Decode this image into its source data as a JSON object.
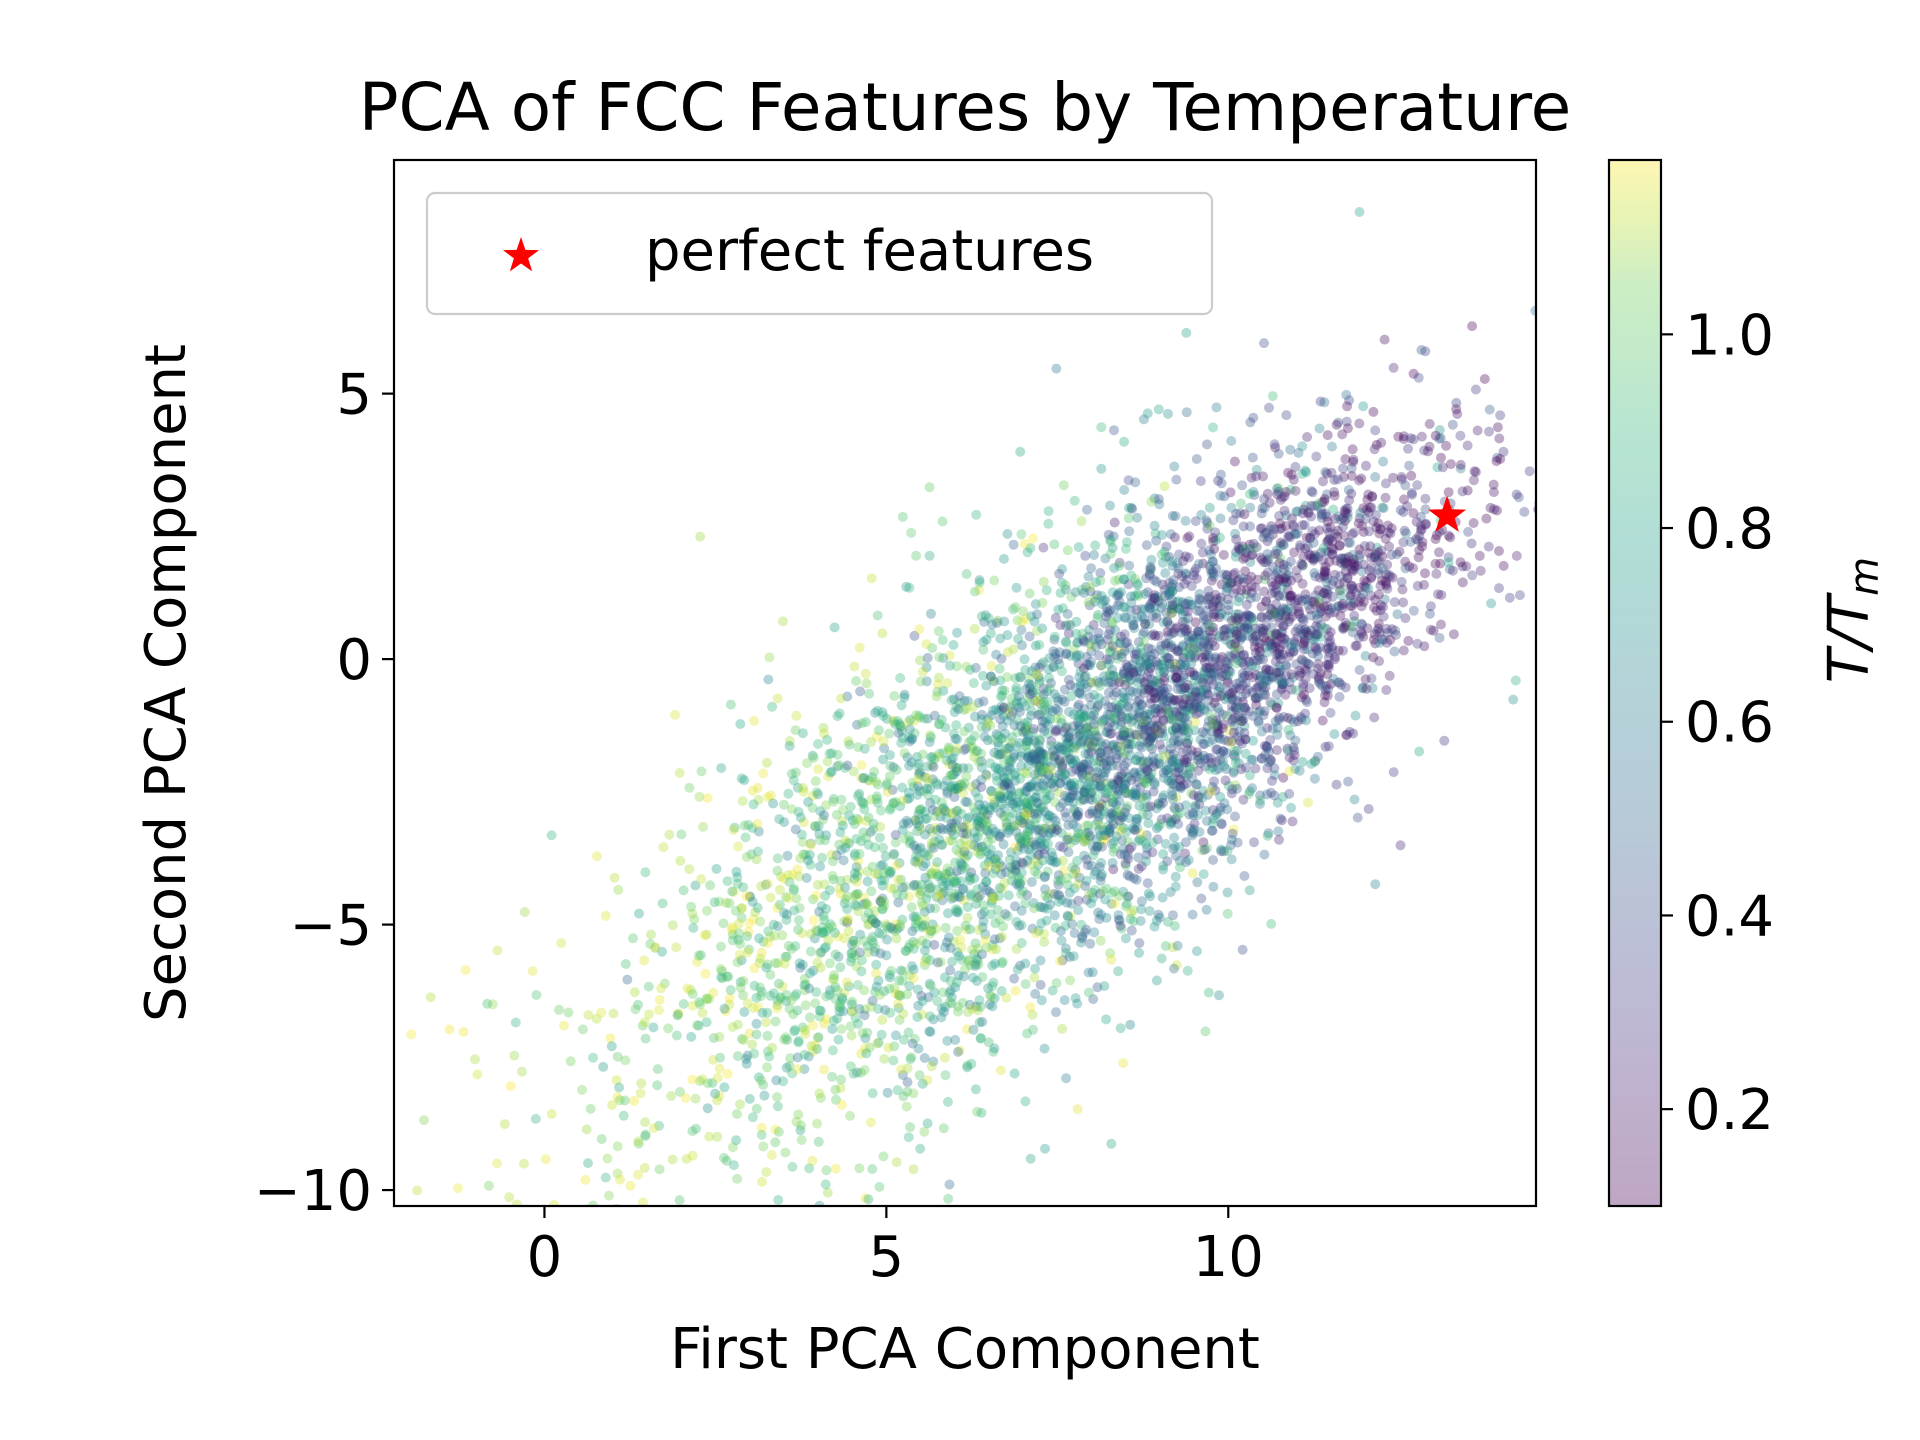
{
  "chart_data": {
    "type": "scatter",
    "title": "PCA of FCC Features by Temperature",
    "xlabel": "First PCA Component",
    "ylabel": "Second PCA Component",
    "xlim": [
      -2.2,
      14.5
    ],
    "ylim": [
      -10.3,
      9.4
    ],
    "xticks": [
      {
        "value": 0,
        "label": "0"
      },
      {
        "value": 5,
        "label": "5"
      },
      {
        "value": 10,
        "label": "10"
      }
    ],
    "yticks": [
      {
        "value": 5,
        "label": "5"
      },
      {
        "value": 0,
        "label": "0"
      },
      {
        "value": -5,
        "label": "−5"
      },
      {
        "value": -10,
        "label": "−10"
      }
    ],
    "colorbar": {
      "label_main": "T/T",
      "label_sub": "m",
      "range": [
        0.1,
        1.18
      ],
      "colormap": "viridis",
      "alpha": 0.35,
      "ticks": [
        {
          "value": 0.2,
          "label": "0.2"
        },
        {
          "value": 0.4,
          "label": "0.4"
        },
        {
          "value": 0.6,
          "label": "0.6"
        },
        {
          "value": 0.8,
          "label": "0.8"
        },
        {
          "value": 1.0,
          "label": "1.0"
        }
      ]
    },
    "legend": {
      "placement": "top-left",
      "entries": [
        {
          "label": "perfect features",
          "marker": "star",
          "color": "#ff0000"
        }
      ]
    },
    "series": [
      {
        "name": "perfect features",
        "marker": "star",
        "color": "#ff0000",
        "points": [
          {
            "x": 13.2,
            "y": 2.7
          }
        ]
      }
    ],
    "grid": false
  }
}
